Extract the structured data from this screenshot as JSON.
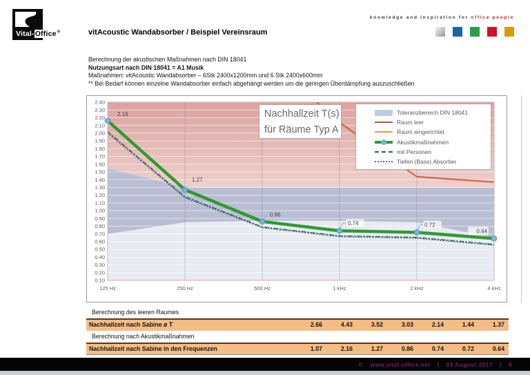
{
  "header": {
    "logo": {
      "brand_white": "Vital-",
      "brand_black": "Office",
      "registered": "®"
    },
    "title": "vitAcoustic Wandabsorber / Beispiel Vereinsraum",
    "tagline_prefix": "knowledge and inspiration for",
    "tagline_highlight": "office people",
    "squares": [
      {
        "name": "silver",
        "color": "#f2f2f2",
        "color2": "#96989c"
      },
      {
        "name": "blue",
        "color": "#1566b0"
      },
      {
        "name": "green",
        "color": "#28a04a"
      },
      {
        "name": "red",
        "color": "#d01228"
      },
      {
        "name": "gold",
        "color": "#d89b07"
      }
    ]
  },
  "intro": {
    "line1": "Berechnung der akustischen Maßnahmen nach DIN 18041",
    "line2": "Nutzungsart nach DIN 18041 = A1 Musik",
    "line3": "Maßnahmen: vitAcoustic Wandabsorber – 6Stk 2400x1200mm und 6 Stk 2400x600mm",
    "line4": "** Bei Bedarf können  einzelne Wandabsorber einfach abgehängt werden um die geringen Überdämpfung auszuschließen"
  },
  "chart_data": {
    "type": "line",
    "title_box": {
      "line1": "Nachhallzeit T(s)",
      "line2": "für Räume Typ A"
    },
    "categories": [
      "125 Hz",
      "250 Hz",
      "500 Hz",
      "1 kHz",
      "2 kHz",
      "4 kHz"
    ],
    "ylim": [
      0.1,
      2.4
    ],
    "ytick_step": 0.1,
    "grid": true,
    "legend_position": "top-right-inside",
    "tolerance_band": {
      "label": "Toleranzbereich DIN 18041",
      "upper": [
        1.55,
        1.3,
        1.3,
        1.3,
        1.3,
        1.3
      ],
      "lower": [
        0.7,
        0.85,
        0.87,
        0.87,
        0.85,
        0.65
      ],
      "band_color": "#b9bed3",
      "legend_swatch_color": "#c3cbe4",
      "above_color_top": "#dba3a1",
      "above_color_bottom": "#efd0cd",
      "below_color": "#e9ebf3"
    },
    "series": [
      {
        "name": "Raum leer",
        "color": "#c0504d",
        "style": "solid",
        "width": 1.6,
        "values": [
          4.43,
          3.52,
          3.03,
          2.14,
          1.44,
          1.37
        ]
      },
      {
        "name": "Raum eingerichtet",
        "color": "#e59a55",
        "style": "solid",
        "width": 1.2,
        "values": [
          4.4,
          3.5,
          3.01,
          2.12,
          1.43,
          1.36
        ],
        "estimated_from_plot": true
      },
      {
        "name": "Akustikmaßnahmen",
        "color": "#2f9a32",
        "style": "thick-marker",
        "width": 4.5,
        "marker_fill": "#74b6da",
        "marker_stroke": "#4e93c4",
        "data_labels": true,
        "values": [
          2.16,
          1.27,
          0.86,
          0.74,
          0.72,
          0.64
        ]
      },
      {
        "name": "mit Personen",
        "color": "#265f3c",
        "style": "dash",
        "width": 1.4,
        "values": [
          2.02,
          1.18,
          0.79,
          0.675,
          0.655,
          0.565
        ],
        "estimated_from_plot": true
      },
      {
        "name": "Tiefen (Bass) Absorber",
        "color": "#44609c",
        "style": "dot",
        "width": 1.2,
        "values": [
          2.0,
          1.165,
          0.78,
          0.663,
          0.643,
          0.553
        ],
        "estimated_from_plot": true
      }
    ]
  },
  "tables": [
    {
      "section": "Berechnung des leeren Raumes",
      "row_label": "Nachhallzeit nach Sabine ø T",
      "values": [
        "2.66",
        "4.43",
        "3.52",
        "3.03",
        "2.14",
        "1.44",
        "1.37"
      ]
    },
    {
      "section": "Berechnung nach Akustikmaßnahmen",
      "row_label": "Nachhallzeit nach Sabine in den Frequenzen",
      "values": [
        "1.07",
        "2.16",
        "1.27",
        "0.86",
        "0.74",
        "0.72",
        "0.64"
      ]
    }
  ],
  "footer": {
    "copyright": "©",
    "url": "www.vital-office.net",
    "sep": "|",
    "date": "04 August 2017",
    "page": "6"
  }
}
